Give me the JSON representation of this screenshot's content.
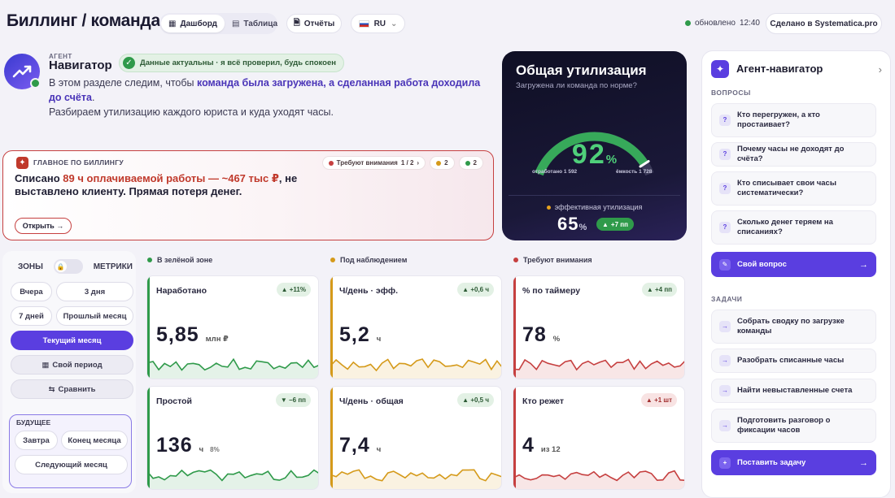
{
  "header": {
    "title": "Биллинг / команда",
    "tab_dashboard": "Дашборд",
    "tab_table": "Таблица",
    "reports": "Отчёты",
    "lang": "RU",
    "updated_label": "обновлено",
    "updated_time": "12:40",
    "made_in": "Сделано в Systematica.pro"
  },
  "agent": {
    "role": "АГЕНТ",
    "name": "Навигатор",
    "status": "Данные актуальны · я всё проверил, будь спокоен",
    "desc_1": "В этом разделе следим, чтобы",
    "desc_bold_1": "команда была загружена,",
    "desc_bold_2": "а сделанная работа доходила до счёта",
    "desc_2": "Разбираем утилизацию каждого юриста и куда уходят часы."
  },
  "billing": {
    "label": "ГЛАВНОЕ ПО БИЛЛИНГУ",
    "head_1": "Списано",
    "head_hl": "89 ч оплачиваемой работы — ~467 тыс ₽",
    "head_2": ", не выставлено клиенту. Прямая потеря денег.",
    "tag_attention": "Требуют внимания",
    "tag_attention_count": "1 / 2",
    "tag_watch": "2",
    "tag_green": "2",
    "open": "Открыть →"
  },
  "util": {
    "title": "Общая утилизация",
    "subtitle": "Загружена ли команда по норме?",
    "value": "92",
    "pct": "%",
    "left_caption": "отработано 1 592",
    "right_caption": "ёмкость 1 728",
    "eff_label": "эффективная утилизация",
    "eff_value": "65",
    "eff_pct": "%",
    "eff_delta": "+7 пп",
    "gauge_value": 0.92
  },
  "filters": {
    "zones": "ЗОНЫ",
    "metrics": "МЕТРИКИ",
    "yesterday": "Вчера",
    "three_days": "3 дня",
    "seven_days": "7 дней",
    "last_month": "Прошлый месяц",
    "current_month": "Текущий месяц",
    "custom": "Свой период",
    "compare": "Сравнить",
    "future": "БУДУЩЕЕ",
    "tomorrow": "Завтра",
    "month_end": "Конец месяца",
    "next_month": "Следующий месяц"
  },
  "columns": {
    "green": "В зелёной зоне",
    "watch": "Под наблюдением",
    "attention": "Требуют внимания"
  },
  "colors": {
    "green": "#2f9a4a",
    "amber": "#d59a1a",
    "red": "#c64040",
    "accent": "#5a3ee0"
  },
  "cards": [
    {
      "name": "Наработано",
      "delta": "+11%",
      "value": "5,85",
      "unit": "млн ₽",
      "unit2": ""
    },
    {
      "name": "Ч/день · эфф.",
      "delta": "+0,6 ч",
      "value": "5,2",
      "unit": "ч",
      "unit2": ""
    },
    {
      "name": "% по таймеру",
      "delta": "+4 пп",
      "value": "78",
      "unit": "%",
      "unit2": ""
    },
    {
      "name": "Простой",
      "delta": "−6 пп",
      "value": "136",
      "unit": "ч",
      "unit2": "8%"
    },
    {
      "name": "Ч/день · общая",
      "delta": "+0,5 ч",
      "value": "7,4",
      "unit": "ч",
      "unit2": ""
    },
    {
      "name": "Кто режет",
      "delta": "+1 шт",
      "value": "4",
      "unit": "из 12",
      "unit2": ""
    }
  ],
  "panel": {
    "title": "Агент-навигатор",
    "questions_label": "ВОПРОСЫ",
    "q1": "Кто перегружен, а кто простаивает?",
    "q2": "Почему часы не доходят до счёта?",
    "q3": "Кто списывает свои часы систематически?",
    "q4": "Сколько денег теряем на списаниях?",
    "own_question": "Свой вопрос",
    "tasks_label": "ЗАДАЧИ",
    "t1": "Собрать сводку по загрузке команды",
    "t2": "Разобрать списанные часы",
    "t3": "Найти невыставленные счета",
    "t4": "Подготовить разговор о фиксации часов",
    "set_task": "Поставить задачу"
  }
}
